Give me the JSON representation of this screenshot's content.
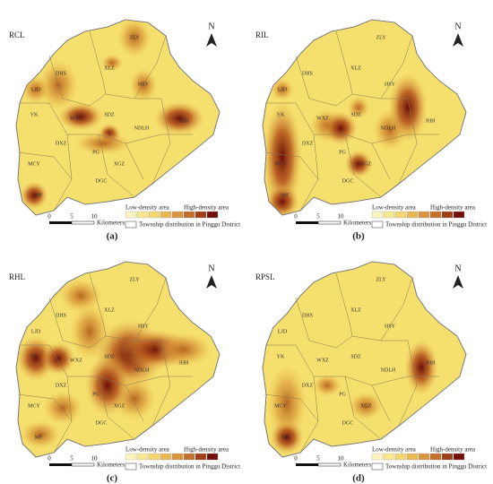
{
  "panels": [
    {
      "name": "RCL",
      "caption": "(a)"
    },
    {
      "name": "RIL",
      "caption": "(b)"
    },
    {
      "name": "RHL",
      "caption": "(c)"
    },
    {
      "name": "RPSL",
      "caption": "(d)"
    }
  ],
  "townships": [
    "ZLY",
    "DHS",
    "XLZ",
    "HSY",
    "LJD",
    "WXZ",
    "SDZ",
    "NDLH",
    "JHH",
    "YK",
    "DXZ",
    "PG",
    "MCY",
    "XGZ",
    "DGC",
    "MF"
  ],
  "legend": {
    "low": "Low-density area",
    "high": "High-density area",
    "township": "Township distribution in Pinggu District"
  },
  "scale": {
    "ticks": [
      "0",
      "5",
      "10"
    ],
    "unit": "Kilometers"
  },
  "north": "N"
}
